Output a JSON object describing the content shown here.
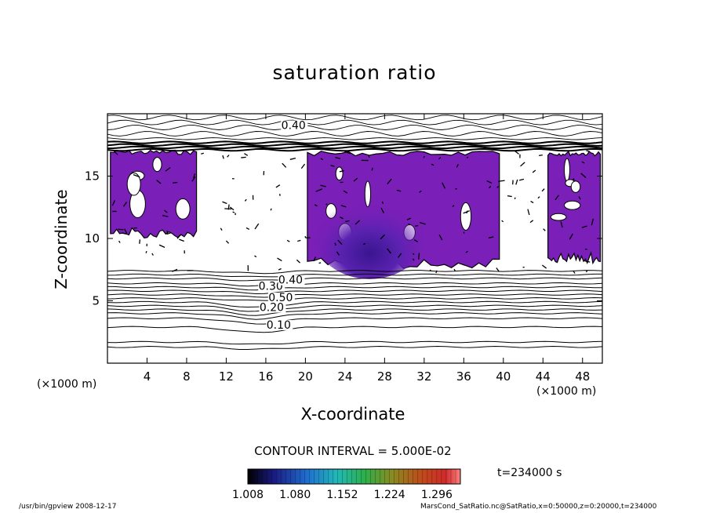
{
  "chart_data": {
    "type": "heatmap",
    "title": "saturation ratio",
    "xlabel": "X-coordinate",
    "ylabel": "Z-coordinate",
    "x_unit": "(×1000 m)",
    "y_unit": "(×1000 m)",
    "xlim": [
      0,
      50
    ],
    "ylim": [
      0,
      20
    ],
    "xticks": [
      4,
      8,
      12,
      16,
      20,
      24,
      28,
      32,
      36,
      40,
      44,
      48
    ],
    "yticks": [
      5,
      10,
      15
    ],
    "contour_labels": [
      {
        "text": "0.40",
        "x": 18.8,
        "z": 18.9
      },
      {
        "text": "0.30",
        "x": 16.5,
        "z": 6.0
      },
      {
        "text": "0.40",
        "x": 18.5,
        "z": 6.5
      },
      {
        "text": "0.50",
        "x": 17.5,
        "z": 5.1
      },
      {
        "text": "0.20",
        "x": 16.6,
        "z": 4.3
      },
      {
        "text": "0.10",
        "x": 17.3,
        "z": 2.9
      }
    ],
    "supersaturated_regions": [
      {
        "x_range": [
          0.3,
          9.0
        ],
        "z_range": [
          10.0,
          17.1
        ]
      },
      {
        "x_range": [
          20.2,
          39.6
        ],
        "z_range": [
          7.6,
          17.0
        ]
      },
      {
        "x_range": [
          44.5,
          49.8
        ],
        "z_range": [
          8.0,
          17.0
        ]
      }
    ],
    "isoline_z": [
      1.3,
      1.7,
      2.9,
      3.6,
      4.0,
      4.3,
      4.6,
      4.9,
      5.2,
      5.5,
      5.8,
      6.1,
      6.4,
      6.8,
      7.1,
      7.4
    ],
    "upper_isoline_z": [
      17.1,
      17.3,
      17.5,
      17.7,
      18.0,
      18.4,
      18.9,
      19.3,
      19.7
    ],
    "contour_interval": "CONTOUR INTERVAL = 5.000E-02",
    "colorbar": {
      "ticks": [
        "1.008",
        "1.080",
        "1.152",
        "1.224",
        "1.296"
      ],
      "range": [
        1.008,
        1.332
      ]
    },
    "time": "t=234000 s"
  },
  "footer": {
    "left": "/usr/bin/gpview  2008-12-17",
    "right": "MarsCond_SatRatio.nc@SatRatio,x=0:50000,z=0:20000,t=234000"
  }
}
